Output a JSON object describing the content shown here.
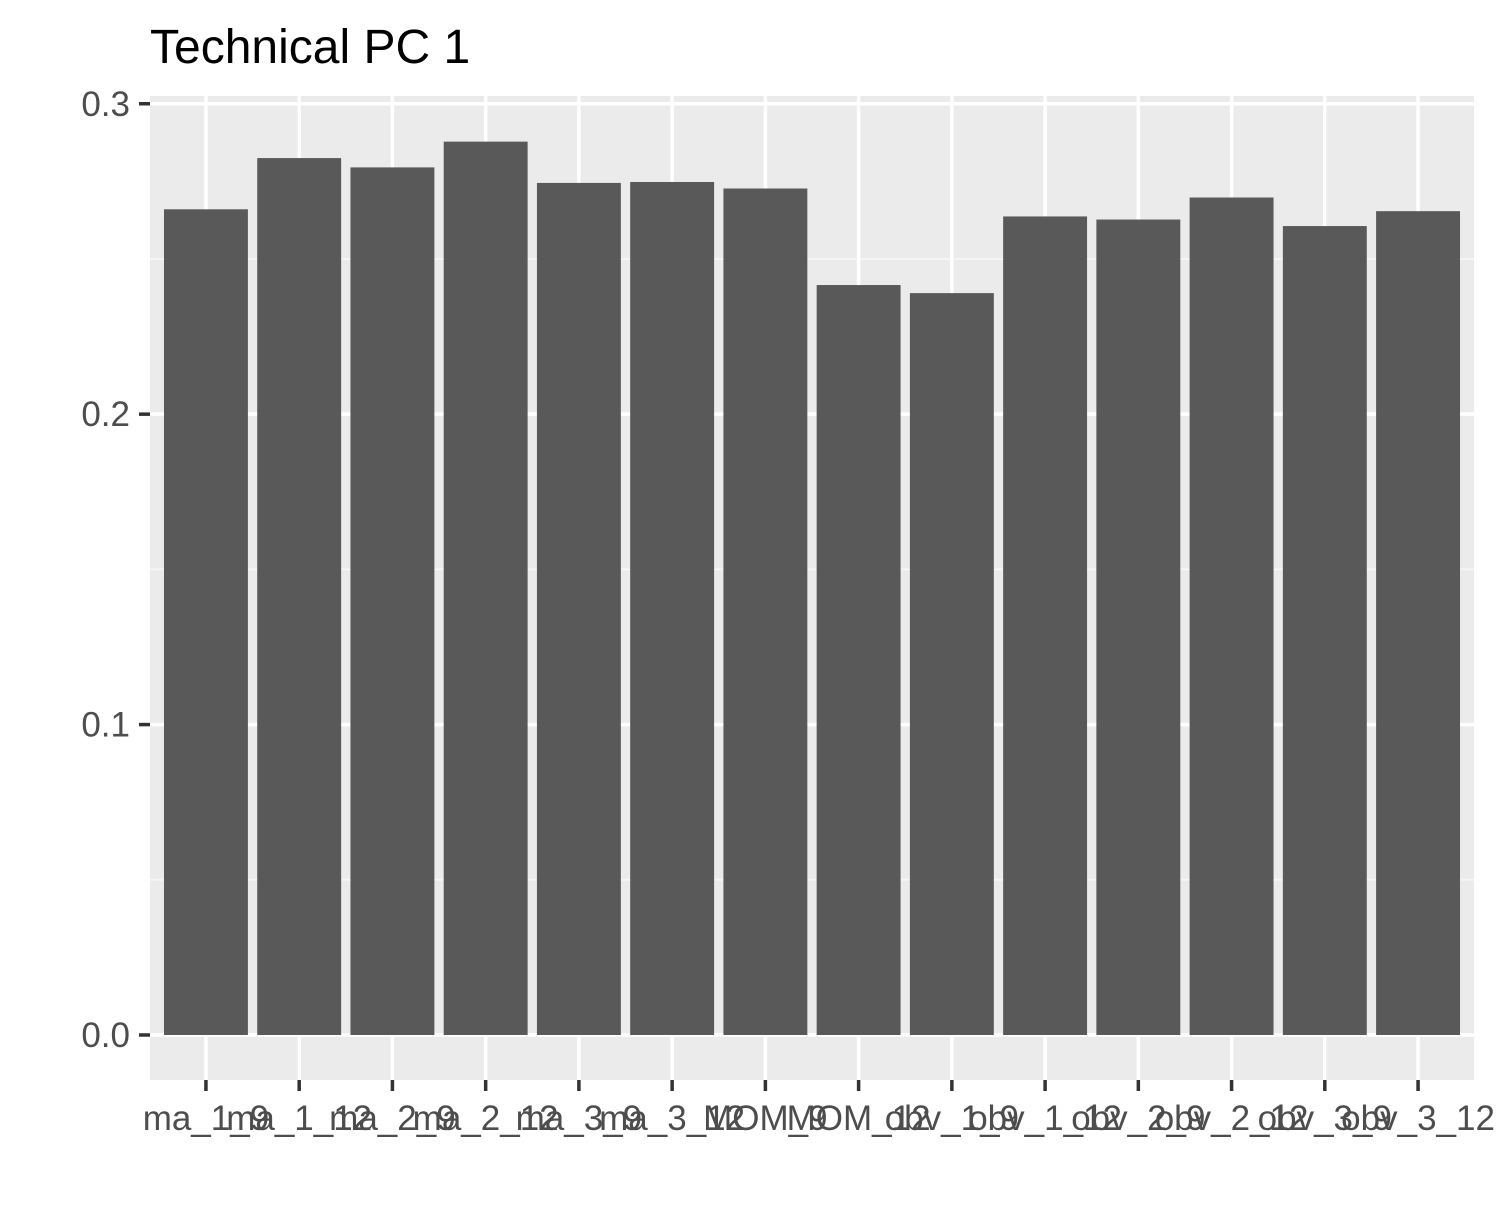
{
  "chart_data": {
    "type": "bar",
    "title": "Technical PC 1",
    "xlabel": "",
    "ylabel": "",
    "categories": [
      "ma_1_9",
      "ma_1_12",
      "ma_2_9",
      "ma_2_12",
      "ma_3_9",
      "ma_3_12",
      "MOM_9",
      "MOM_12",
      "obv_1_9",
      "obv_1_12",
      "obv_2_9",
      "obv_2_12",
      "obv_3_9",
      "obv_3_12"
    ],
    "values": [
      0.266,
      0.2825,
      0.2795,
      0.2878,
      0.2745,
      0.2748,
      0.2727,
      0.2416,
      0.239,
      0.2637,
      0.2627,
      0.2698,
      0.2606,
      0.2654
    ],
    "ylim": [
      -0.0145,
      0.3025
    ],
    "yticks": [
      0.0,
      0.1,
      0.2,
      0.3
    ],
    "ytick_labels": [
      "0.0",
      "0.1",
      "0.2",
      "0.3"
    ],
    "grid": true,
    "legend": "none",
    "colors": {
      "bar": "#595959",
      "panel": "#ebebeb",
      "grid_major": "#ffffff",
      "grid_minor": "#f5f5f5",
      "tick": "#333333",
      "tick_text": "#4d4d4d",
      "title": "#000000"
    }
  }
}
